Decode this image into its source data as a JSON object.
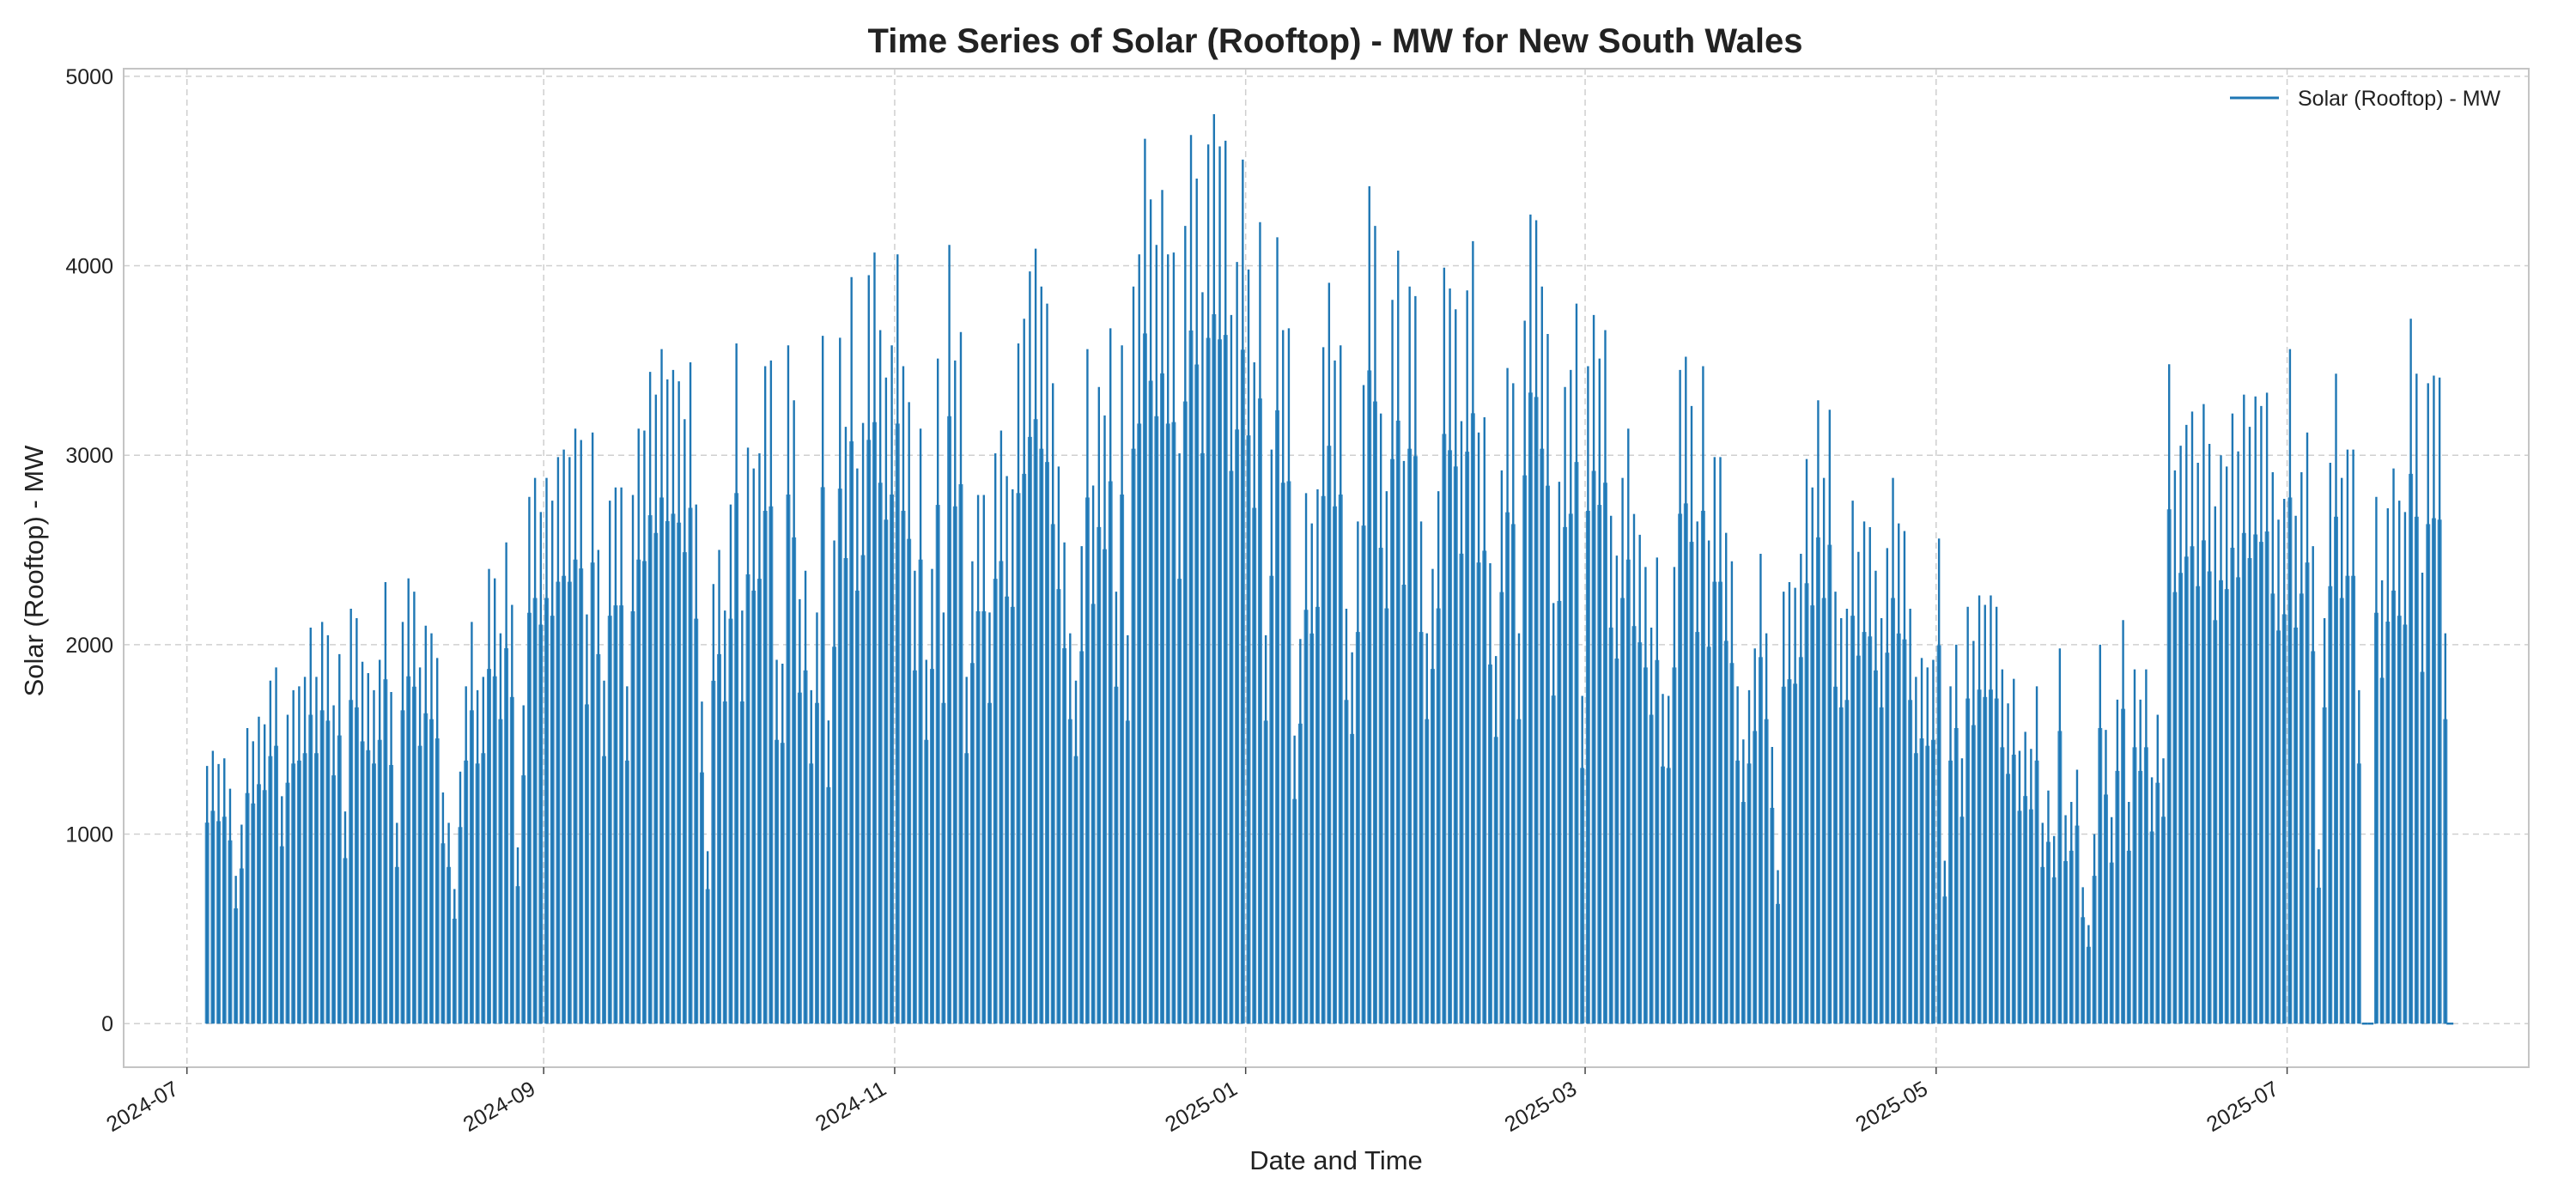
{
  "chart_data": {
    "type": "line",
    "title": "Time Series of Solar (Rooftop) -  MW for New South Wales",
    "xlabel": "Date and Time",
    "ylabel": "Solar (Rooftop) -  MW",
    "legend": {
      "entries": [
        "Solar (Rooftop) -  MW"
      ],
      "placement": "top-right"
    },
    "grid": true,
    "xlim": [
      "2024-06-20",
      "2025-08-12"
    ],
    "ylim": [
      -230,
      5040
    ],
    "x_ticks": [
      "2024-07",
      "2024-09",
      "2024-11",
      "2025-01",
      "2025-03",
      "2025-05",
      "2025-07"
    ],
    "y_ticks": [
      0,
      1000,
      2000,
      3000,
      4000,
      5000
    ],
    "colors": {
      "series": "#1f77b4",
      "fill": "#3f8fc6",
      "grid": "#cfcfcf"
    },
    "series": [
      {
        "name": "Solar (Rooftop) -  MW",
        "sampling": "daily peak (MW), one value per day",
        "start_date": "2024-07-04",
        "daily_peak": [
          1360,
          1440,
          1370,
          1400,
          1240,
          780,
          1050,
          1560,
          1490,
          1620,
          1580,
          1810,
          1880,
          1200,
          1630,
          1760,
          1780,
          1830,
          2090,
          1830,
          2120,
          2050,
          1680,
          1950,
          1120,
          2190,
          2140,
          1910,
          1850,
          1760,
          1920,
          2330,
          1750,
          1060,
          2120,
          2350,
          2280,
          1880,
          2100,
          2060,
          1930,
          1220,
          1060,
          710,
          1330,
          1780,
          2120,
          1760,
          1830,
          2400,
          2350,
          2060,
          2540,
          2210,
          930,
          1680,
          2780,
          2880,
          2700,
          2880,
          2760,
          2990,
          3030,
          2990,
          3140,
          3080,
          2160,
          3120,
          2500,
          1810,
          2760,
          2830,
          2830,
          1780,
          2790,
          3140,
          3130,
          3440,
          3320,
          3560,
          3400,
          3450,
          3390,
          3190,
          3490,
          2740,
          1700,
          910,
          2320,
          2500,
          2180,
          2740,
          3590,
          2180,
          3040,
          2930,
          3010,
          3470,
          3500,
          1920,
          1900,
          3580,
          3290,
          2240,
          2390,
          1760,
          2170,
          3630,
          1600,
          2550,
          3620,
          3150,
          3940,
          2930,
          3170,
          3950,
          4070,
          3660,
          3410,
          3580,
          4060,
          3470,
          3280,
          2390,
          3140,
          1920,
          2400,
          3510,
          2170,
          4110,
          3500,
          3650,
          1830,
          2440,
          2790,
          2790,
          2170,
          3010,
          3130,
          2890,
          2820,
          3590,
          3720,
          3970,
          4090,
          3890,
          3800,
          3380,
          2940,
          2540,
          2060,
          1810,
          2520,
          3560,
          2840,
          3360,
          3210,
          3670,
          2280,
          3580,
          2050,
          3890,
          4060,
          4670,
          4350,
          4110,
          4400,
          4060,
          4070,
          3010,
          4210,
          4690,
          4460,
          3860,
          4640,
          4800,
          4630,
          4660,
          3740,
          4020,
          4560,
          3980,
          3490,
          4230,
          2050,
          3030,
          4150,
          3660,
          3670,
          1520,
          2030,
          2800,
          2640,
          2820,
          3570,
          3910,
          3500,
          3580,
          2190,
          1960,
          2650,
          3370,
          4420,
          4210,
          3220,
          2810,
          3820,
          4080,
          2970,
          3890,
          3840,
          2650,
          2060,
          2400,
          2810,
          3990,
          3880,
          3770,
          3180,
          3870,
          4130,
          3120,
          3200,
          2430,
          1940,
          2920,
          3460,
          3380,
          2060,
          3710,
          4270,
          4240,
          3890,
          3640,
          2220,
          2860,
          3360,
          3450,
          3800,
          1730,
          3470,
          3740,
          3510,
          3660,
          2680,
          2470,
          2880,
          3140,
          2690,
          2580,
          2410,
          2090,
          2460,
          1740,
          1730,
          2410,
          3450,
          3520,
          3260,
          2650,
          3470,
          2550,
          2990,
          2990,
          2590,
          2440,
          1780,
          1500,
          1760,
          1980,
          2480,
          2060,
          1460,
          810,
          2280,
          2330,
          2300,
          2480,
          2980,
          2830,
          3290,
          2880,
          3240,
          2280,
          2140,
          2190,
          2760,
          2490,
          2650,
          2620,
          2390,
          2140,
          2510,
          2880,
          2640,
          2600,
          2190,
          1830,
          1930,
          1880,
          1920,
          2560,
          860,
          1780,
          2000,
          1400,
          2200,
          2020,
          2260,
          2210,
          2260,
          2200,
          1870,
          1690,
          1820,
          1440,
          1540,
          1450,
          1780,
          1060,
          1230,
          990,
          1980,
          1100,
          1170,
          1340,
          720,
          520,
          1000,
          2000,
          1550,
          1090,
          1710,
          2130,
          1170,
          1870,
          1710,
          1870,
          1300,
          1630,
          1400,
          3480,
          2920,
          3050,
          3160,
          3230,
          2960,
          3270,
          3060,
          2730,
          3000,
          2940,
          3220,
          3020,
          3320,
          3150,
          3310,
          3260,
          3330,
          2910,
          2660,
          2770,
          3560,
          2680,
          2910,
          3120,
          2520,
          920,
          2140,
          2960,
          3430,
          2880,
          3030,
          3030,
          1760,
          0,
          0,
          2780,
          2340,
          2720,
          2930,
          2760,
          2700,
          3720,
          3430,
          2380,
          3380,
          3420,
          3410,
          2060
        ]
      }
    ]
  }
}
